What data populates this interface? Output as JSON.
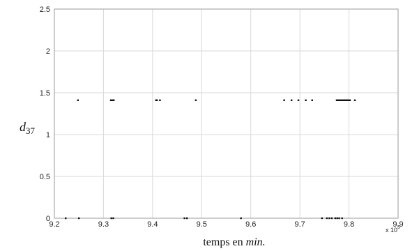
{
  "chart_data": {
    "type": "scatter",
    "xlabel_text": "temps en ",
    "xlabel_italic": "min.",
    "ylabel_main": "d",
    "ylabel_sub": "37",
    "x_multiplier_base": "x 10",
    "x_multiplier_exp": "5",
    "xlim": [
      9.2,
      9.9
    ],
    "ylim": [
      0,
      2.5
    ],
    "xticks": [
      9.2,
      9.3,
      9.4,
      9.5,
      9.6,
      9.7,
      9.8,
      9.9
    ],
    "xtick_labels": [
      "9.2",
      "9.3",
      "9.4",
      "9.5",
      "9.6",
      "9.7",
      "9.8",
      "9.9"
    ],
    "yticks": [
      0,
      0.5,
      1,
      1.5,
      2,
      2.5
    ],
    "ytick_labels": [
      "0",
      "0.5",
      "1",
      "1.5",
      "2",
      "2.5"
    ],
    "grid": true,
    "point_color": "#111111",
    "points": [
      {
        "x": 9.223,
        "y": 0
      },
      {
        "x": 9.25,
        "y": 0
      },
      {
        "x": 9.316,
        "y": 0
      },
      {
        "x": 9.32,
        "y": 0
      },
      {
        "x": 9.465,
        "y": 0
      },
      {
        "x": 9.47,
        "y": 0
      },
      {
        "x": 9.58,
        "y": 0
      },
      {
        "x": 9.745,
        "y": 0
      },
      {
        "x": 9.755,
        "y": 0
      },
      {
        "x": 9.76,
        "y": 0
      },
      {
        "x": 9.765,
        "y": 0
      },
      {
        "x": 9.772,
        "y": 0
      },
      {
        "x": 9.776,
        "y": 0
      },
      {
        "x": 9.78,
        "y": 0
      },
      {
        "x": 9.786,
        "y": 0
      },
      {
        "x": 9.248,
        "y": 1.41
      },
      {
        "x": 9.315,
        "y": 1.41
      },
      {
        "x": 9.318,
        "y": 1.41
      },
      {
        "x": 9.321,
        "y": 1.41
      },
      {
        "x": 9.407,
        "y": 1.41
      },
      {
        "x": 9.409,
        "y": 1.41
      },
      {
        "x": 9.415,
        "y": 1.41
      },
      {
        "x": 9.488,
        "y": 1.41
      },
      {
        "x": 9.668,
        "y": 1.41
      },
      {
        "x": 9.683,
        "y": 1.41
      },
      {
        "x": 9.697,
        "y": 1.41
      },
      {
        "x": 9.712,
        "y": 1.41
      },
      {
        "x": 9.725,
        "y": 1.41
      },
      {
        "x": 9.775,
        "y": 1.41
      },
      {
        "x": 9.778,
        "y": 1.41
      },
      {
        "x": 9.781,
        "y": 1.41
      },
      {
        "x": 9.784,
        "y": 1.41
      },
      {
        "x": 9.787,
        "y": 1.41
      },
      {
        "x": 9.79,
        "y": 1.41
      },
      {
        "x": 9.793,
        "y": 1.41
      },
      {
        "x": 9.796,
        "y": 1.41
      },
      {
        "x": 9.799,
        "y": 1.41
      },
      {
        "x": 9.802,
        "y": 1.41
      },
      {
        "x": 9.812,
        "y": 1.41
      }
    ]
  }
}
